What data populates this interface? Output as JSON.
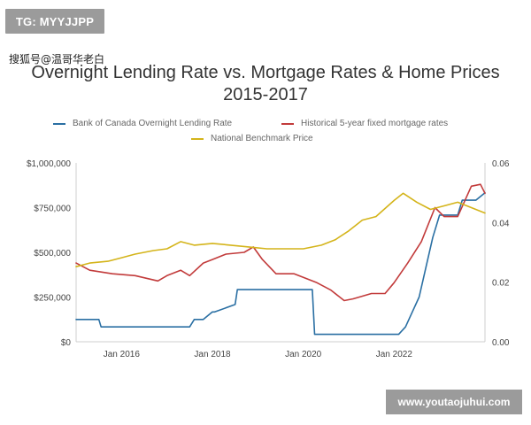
{
  "overlay": {
    "badge_text": "TG: MYYJJPP",
    "watermark_text": "搜狐号@温哥华老白",
    "footer_text": "www.youtaojuhui.com"
  },
  "colors": {
    "policy_rate": "#2a6fa3",
    "mortgage_rate": "#c23b3b",
    "home_price": "#d4b41a",
    "axis_line": "#cfcfcf",
    "text": "#444444"
  },
  "chart_data": {
    "type": "line",
    "title": "Overnight Lending Rate vs. Mortgage Rates & Home Prices",
    "subtitle": "2015-2017",
    "x_ticks": [
      "Jan 2016",
      "Jan 2018",
      "Jan 2020",
      "Jan 2022"
    ],
    "y_left_ticks": [
      "$0",
      "$250,000",
      "$500,000",
      "$750,000",
      "$1,000,000"
    ],
    "y_right_ticks": [
      "0.00",
      "0.02",
      "0.04",
      "0.06"
    ],
    "legend_placement": "top",
    "grid": false,
    "y_left_range": [
      0,
      1000000
    ],
    "y_right_range": [
      0,
      0.06
    ],
    "series": [
      {
        "name": "Bank of Canada Overnight Lending Rate",
        "axis": "right",
        "x": [
          2015.0,
          2015.1,
          2015.5,
          2015.55,
          2017.5,
          2017.6,
          2017.8,
          2018.0,
          2018.05,
          2018.5,
          2018.55,
          2019.9,
          2020.2,
          2020.25,
          2022.1,
          2022.25,
          2022.4,
          2022.55,
          2022.7,
          2022.85,
          2023.0,
          2023.4,
          2023.5,
          2023.8,
          2024.0
        ],
        "y": [
          0.0075,
          0.0075,
          0.0075,
          0.005,
          0.005,
          0.0075,
          0.0075,
          0.01,
          0.01,
          0.0125,
          0.0175,
          0.0175,
          0.0175,
          0.0025,
          0.0025,
          0.005,
          0.01,
          0.015,
          0.025,
          0.035,
          0.0425,
          0.0425,
          0.0475,
          0.0475,
          0.05
        ]
      },
      {
        "name": "Historical 5-year fixed mortgage rates",
        "axis": "left",
        "x": [
          2015.0,
          2015.3,
          2015.8,
          2016.3,
          2016.8,
          2017.0,
          2017.3,
          2017.5,
          2017.8,
          2018.0,
          2018.3,
          2018.7,
          2018.9,
          2019.1,
          2019.4,
          2019.8,
          2020.0,
          2020.3,
          2020.6,
          2020.9,
          2021.1,
          2021.5,
          2021.8,
          2022.0,
          2022.3,
          2022.6,
          2022.9,
          2023.1,
          2023.4,
          2023.7,
          2023.9,
          2024.0
        ],
        "y": [
          440000,
          400000,
          380000,
          370000,
          340000,
          370000,
          400000,
          370000,
          440000,
          460000,
          490000,
          500000,
          530000,
          460000,
          380000,
          380000,
          360000,
          330000,
          290000,
          230000,
          240000,
          270000,
          270000,
          330000,
          440000,
          560000,
          750000,
          700000,
          700000,
          870000,
          880000,
          830000
        ]
      },
      {
        "name": "National Benchmark Price",
        "axis": "left",
        "x": [
          2015.0,
          2015.3,
          2015.7,
          2016.0,
          2016.3,
          2016.7,
          2017.0,
          2017.3,
          2017.6,
          2018.0,
          2018.4,
          2018.8,
          2019.2,
          2019.6,
          2020.0,
          2020.4,
          2020.7,
          2021.0,
          2021.3,
          2021.6,
          2022.0,
          2022.2,
          2022.5,
          2022.8,
          2023.1,
          2023.4,
          2023.7,
          2024.0
        ],
        "y": [
          420000,
          440000,
          450000,
          470000,
          490000,
          510000,
          520000,
          560000,
          540000,
          550000,
          540000,
          530000,
          520000,
          520000,
          520000,
          540000,
          570000,
          620000,
          680000,
          700000,
          790000,
          830000,
          780000,
          740000,
          760000,
          780000,
          750000,
          720000
        ]
      }
    ]
  }
}
